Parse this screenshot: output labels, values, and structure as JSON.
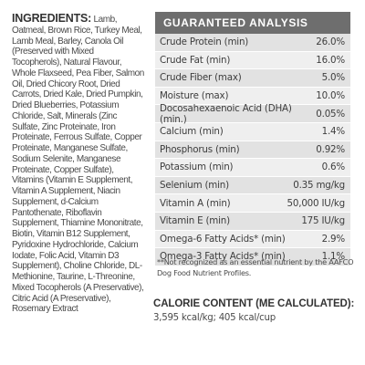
{
  "ingredients": {
    "label": "INGREDIENTS:",
    "text": "Lamb, Oatmeal, Brown Rice, Turkey Meal, Lamb Meal, Barley, Canola Oil (Preserved with Mixed Tocopherols), Natural Flavour, Whole Flaxseed, Pea Fiber, Salmon Oil, Dried Chicory Root, Dried Carrots, Dried Kale, Dried Pumpkin, Dried Blueberries, Potassium Chloride, Salt, Minerals (Zinc Sulfate, Zinc Proteinate, Iron Proteinate, Ferrous Sulfate, Copper Proteinate, Manganese Sulfate, Sodium Selenite, Manganese Proteinate, Copper Sulfate), Vitamins (Vitamin E Supplement, Vitamin A Supplement, Niacin Supplement, d-Calcium Pantothenate, Riboflavin Supplement, Thiamine Mononitrate, Biotin, Vitamin B12 Supplement, Pyridoxine Hydrochloride, Calcium Iodate, Folic Acid, Vitamin D3 Supplement), Choline Chloride, DL-Methionine, Taurine, L-Threonine, Mixed Tocopherols (A Preservative), Citric Acid (A Preservative), Rosemary Extract"
  },
  "analysis": {
    "title": "GUARANTEED ANALYSIS",
    "rows": [
      {
        "name": "Crude Protein (min)",
        "value": "26.0%"
      },
      {
        "name": "Crude Fat (min)",
        "value": "16.0%"
      },
      {
        "name": "Crude Fiber (max)",
        "value": "5.0%"
      },
      {
        "name": "Moisture (max)",
        "value": "10.0%"
      },
      {
        "name": "Docosahexaenoic Acid (DHA)(min.)",
        "value": "0.05%"
      },
      {
        "name": "Calcium (min)",
        "value": "1.4%"
      },
      {
        "name": "Phosphorus (min)",
        "value": "0.92%"
      },
      {
        "name": "Potassium (min)",
        "value": "0.6%"
      },
      {
        "name": "Selenium (min)",
        "value": "0.35 mg/kg"
      },
      {
        "name": "Vitamin A (min)",
        "value": "50,000 IU/kg"
      },
      {
        "name": "Vitamin E (min)",
        "value": "175 IU/kg"
      },
      {
        "name": "Omega-6 Fatty Acids* (min)",
        "value": "2.9%"
      },
      {
        "name": "Omega-3 Fatty Acids* (min)",
        "value": "1.1%"
      }
    ]
  },
  "note": "**Not recognized as an essential nutrient by the AAFCO Dog Food Nutrient Profiles.",
  "calorie": {
    "title": "CALORIE CONTENT (ME CALCULATED):",
    "value": "3,595 kcal/kg; 405 kcal/cup"
  }
}
